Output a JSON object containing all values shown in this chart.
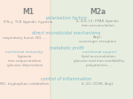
{
  "title_m1": "M1",
  "title_m2a": "M2a",
  "bg_color": "#ffffff",
  "m1_bg": "#fceade",
  "m2a_bg": "#e8eedf",
  "border_color": "#ddccbb",
  "m2a_border": "#c8d8b8",
  "italic_color": "#7ab8cc",
  "text_color": "#999999",
  "title_color": "#888888",
  "sections": [
    {
      "label": "polarization factors",
      "m1_text": "IFN-γ, TLR ligands, hypoxia",
      "m2a_text": "IL-4/IL-13, PPAR ligands,\niron accumulation"
    },
    {
      "label": "direct microbicidal mechanisms",
      "m1_text": "respiratory burst, NO, ...",
      "m2a_text": "Arg1,\nscavenger receptors"
    },
    {
      "label": "metabolic profit",
      "m1_label": "nutritional immunity:",
      "m1_subtext": "hypoxia\niron sequestration\nglucose deprivation",
      "m2a_label": "nutritional support",
      "m2a_subtext": "lipid accumulation,\nglucose and iron availability\npolyamines, ..."
    },
    {
      "label": "control of inflammation",
      "m1_text": "NO, tryptophan catabolism",
      "m2a_text": "IL-10, CD98, Arg1"
    }
  ]
}
